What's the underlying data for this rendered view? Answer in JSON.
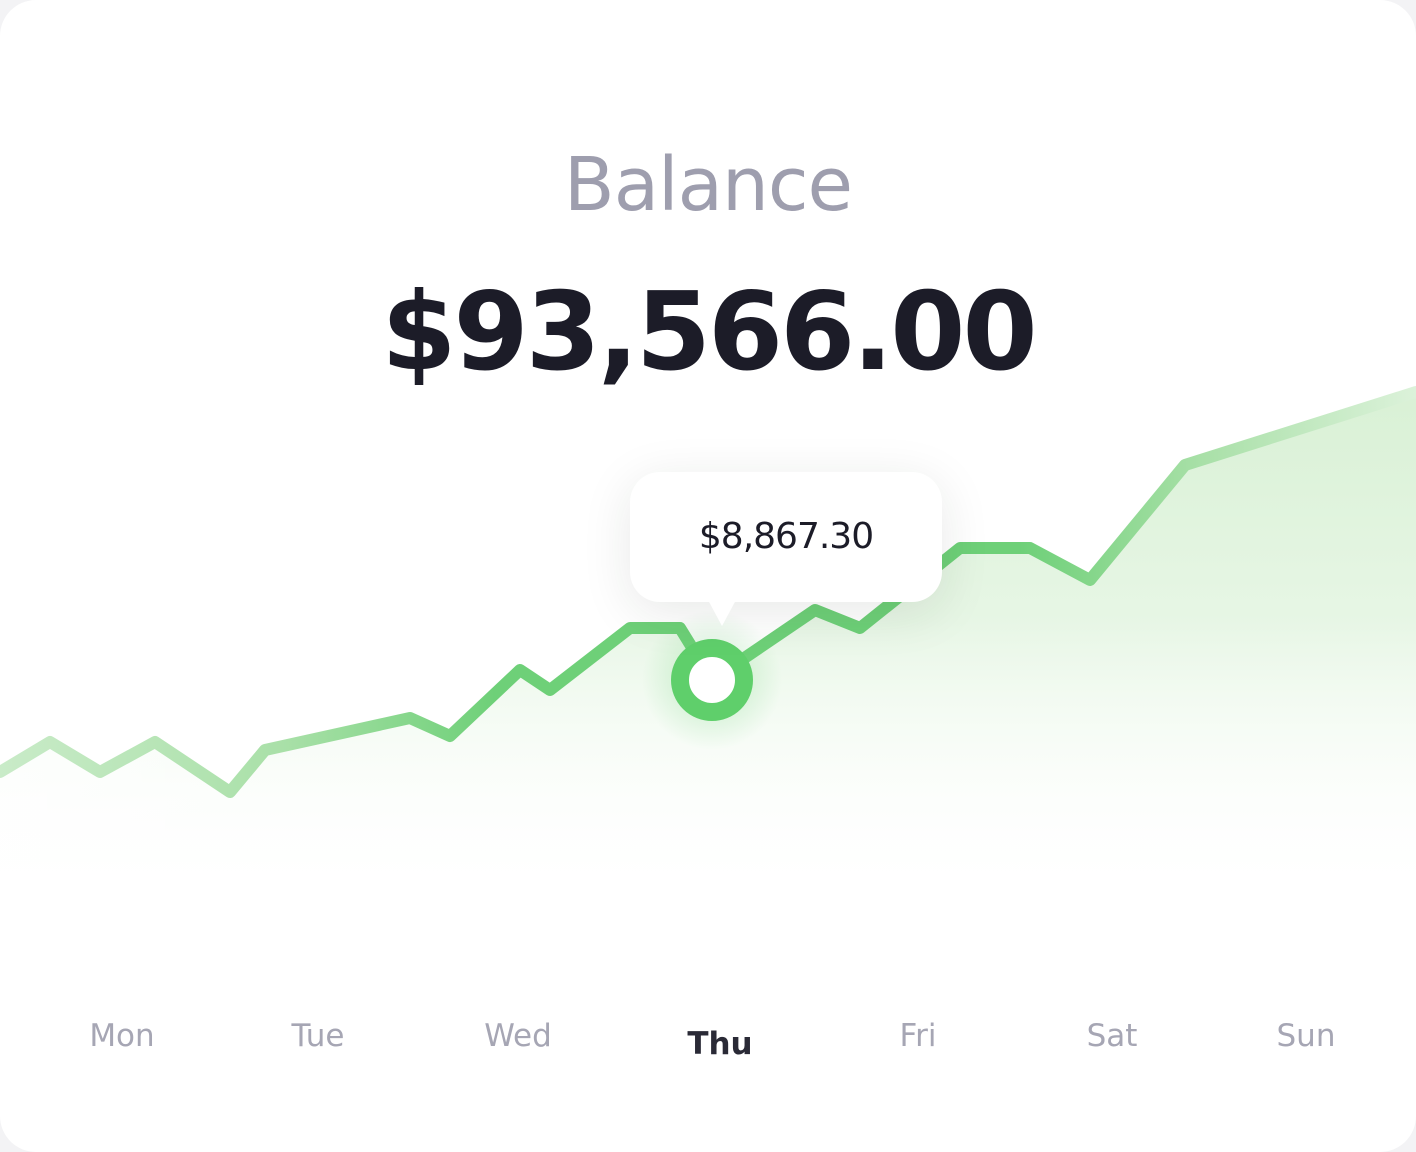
{
  "header": {
    "title": "Balance",
    "amount": "$93,566.00"
  },
  "tooltip": {
    "value": "$8,867.30"
  },
  "days": [
    {
      "label": "Mon",
      "active": false
    },
    {
      "label": "Tue",
      "active": false
    },
    {
      "label": "Wed",
      "active": false
    },
    {
      "label": "Thu",
      "active": true
    },
    {
      "label": "Fri",
      "active": false
    },
    {
      "label": "Sat",
      "active": false
    },
    {
      "label": "Sun",
      "active": false
    }
  ],
  "colors": {
    "line": "#5fcf6b",
    "fill": "#dff3dc",
    "title": "#9e9eae",
    "amount": "#1c1c28",
    "day_inactive": "#a6a6b4",
    "day_active": "#2a2a36"
  },
  "chart_data": {
    "type": "area",
    "x_labels": [
      "Mon",
      "Tue",
      "Wed",
      "Thu",
      "Fri",
      "Sat",
      "Sun"
    ],
    "highlight_label": "Thu",
    "highlight_value": "$8,867.30"
  }
}
